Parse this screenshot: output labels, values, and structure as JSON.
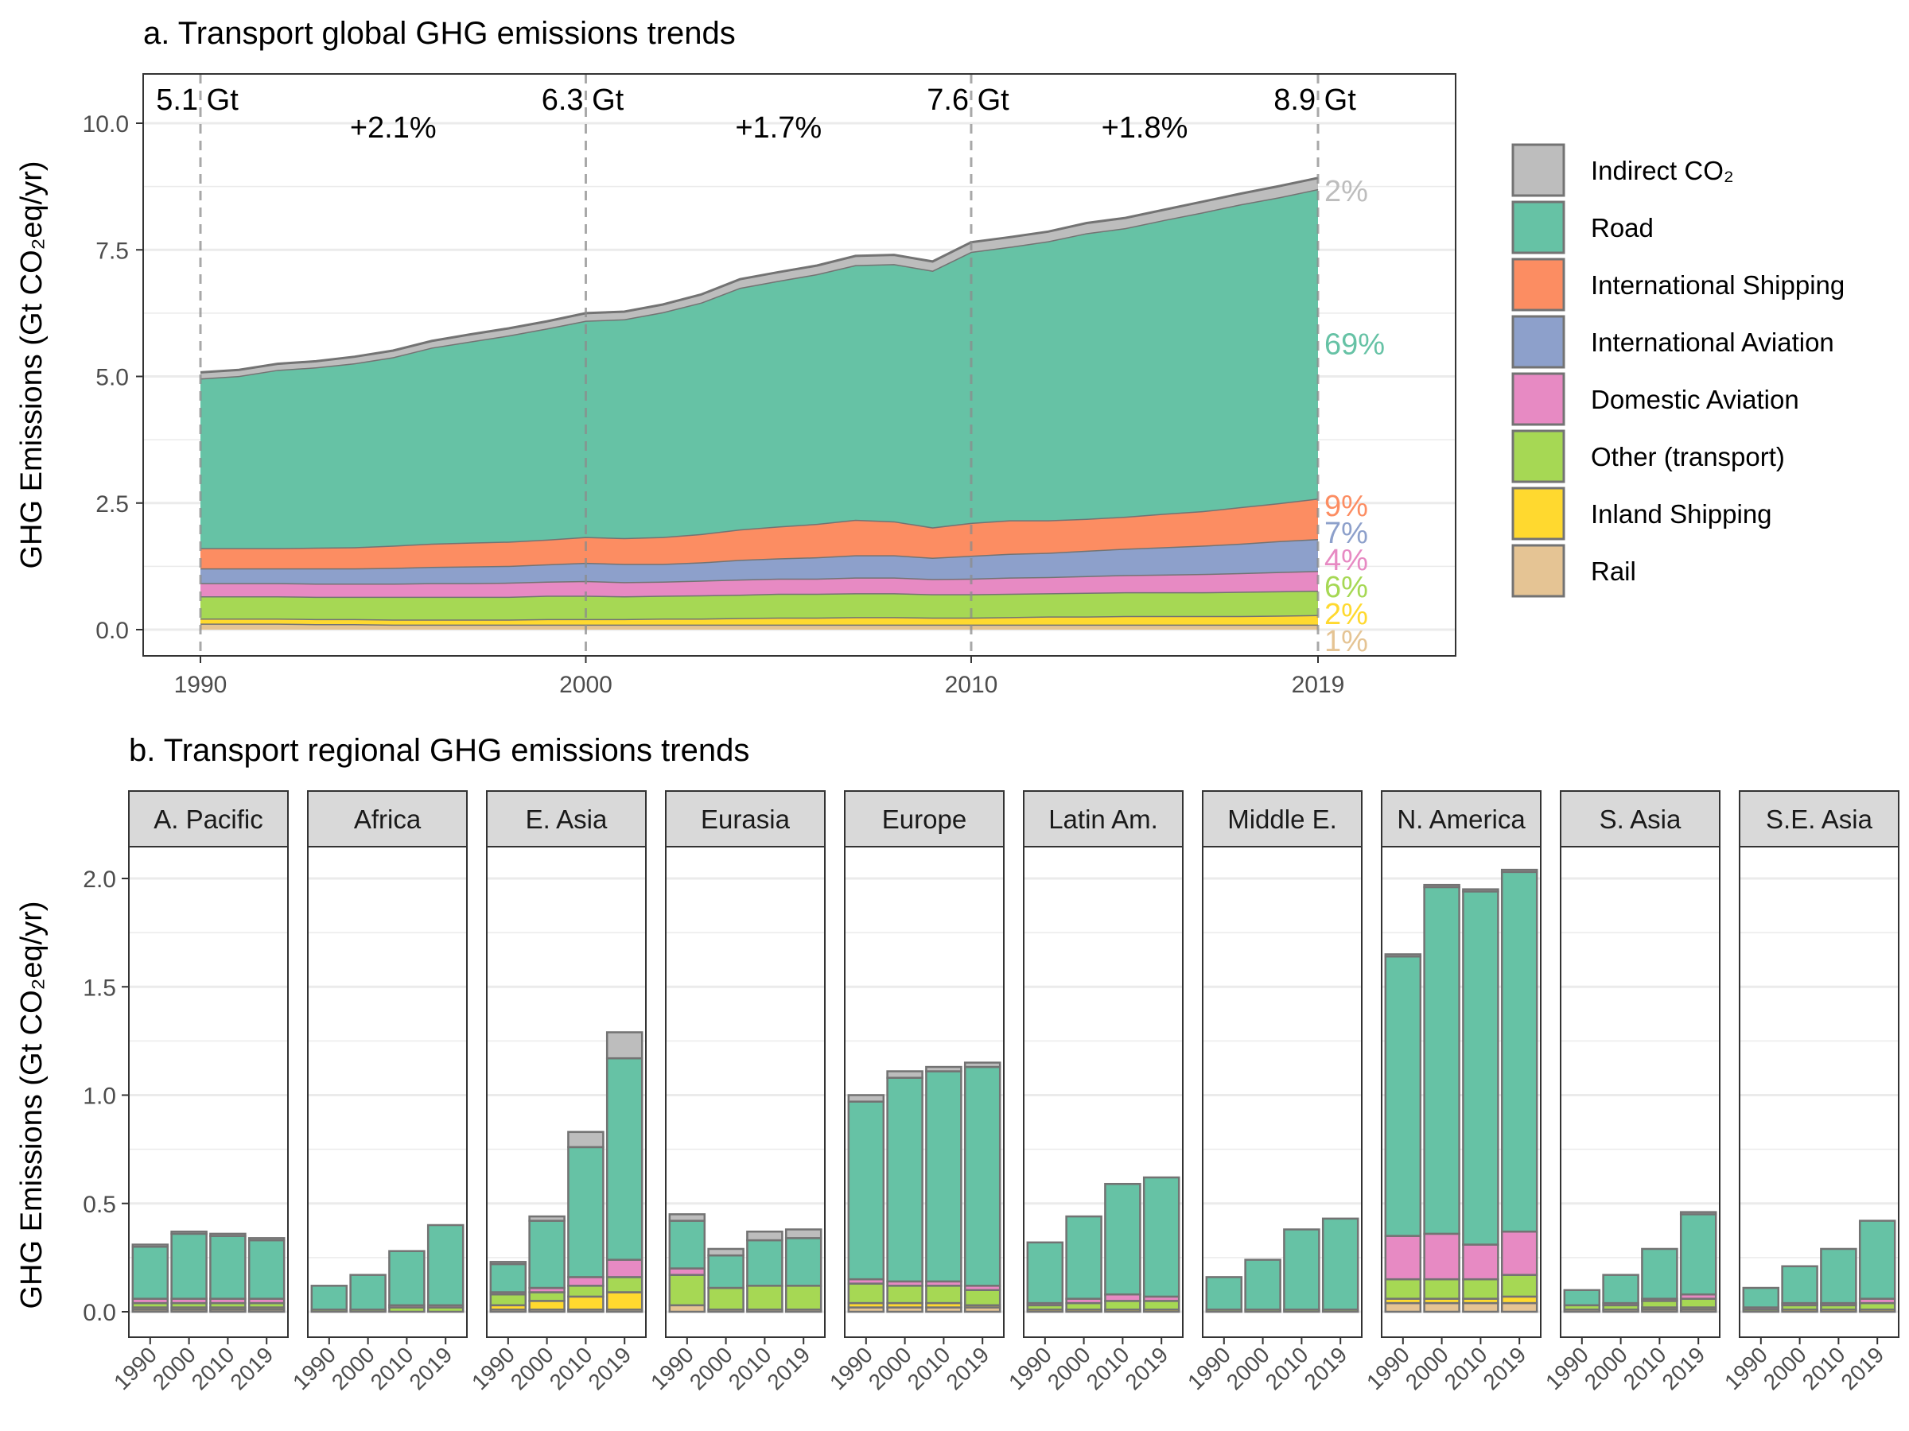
{
  "panel_a": {
    "title": "a. Transport global GHG emissions trends",
    "ylabel": "GHG Emissions (Gt CO₂eq/yr)",
    "yticks": [
      "0.0",
      "2.5",
      "5.0",
      "7.5",
      "10.0"
    ],
    "xticks": [
      "1990",
      "2000",
      "2010",
      "2019"
    ],
    "totals": [
      {
        "year": 1990,
        "label": "5.1 Gt"
      },
      {
        "year": 2000,
        "label": "6.3 Gt"
      },
      {
        "year": 2010,
        "label": "7.6 Gt"
      },
      {
        "year": 2019,
        "label": "8.9 Gt"
      }
    ],
    "growth": [
      {
        "year_mid": 1995,
        "label": "+2.1%"
      },
      {
        "year_mid": 2005,
        "label": "+1.7%"
      },
      {
        "year_mid": 2014.5,
        "label": "+1.8%"
      }
    ],
    "shares": [
      {
        "series": "Indirect CO₂",
        "label": "2%"
      },
      {
        "series": "Road",
        "label": "69%"
      },
      {
        "series": "International Shipping",
        "label": "9%"
      },
      {
        "series": "International Aviation",
        "label": "7%"
      },
      {
        "series": "Domestic Aviation",
        "label": "4%"
      },
      {
        "series": "Other (transport)",
        "label": "6%"
      },
      {
        "series": "Inland Shipping",
        "label": "2%"
      },
      {
        "series": "Rail",
        "label": "1%"
      }
    ]
  },
  "panel_b": {
    "title": "b. Transport regional GHG emissions trends",
    "ylabel": "GHG Emissions (Gt CO₂eq/yr)",
    "yticks": [
      "0.0",
      "0.5",
      "1.0",
      "1.5",
      "2.0"
    ],
    "xticks": [
      "1990",
      "2000",
      "2010",
      "2019"
    ]
  },
  "legend": [
    {
      "name": "Indirect CO₂",
      "color": "#bdbdbd"
    },
    {
      "name": "Road",
      "color": "#66c2a5"
    },
    {
      "name": "International Shipping",
      "color": "#fc8d62"
    },
    {
      "name": "International Aviation",
      "color": "#8da0cb"
    },
    {
      "name": "Domestic Aviation",
      "color": "#e78ac3"
    },
    {
      "name": "Other (transport)",
      "color": "#a6d854"
    },
    {
      "name": "Inland Shipping",
      "color": "#ffd92f"
    },
    {
      "name": "Rail",
      "color": "#e5c494"
    }
  ],
  "chart_data": [
    {
      "type": "area",
      "title": "a. Transport global GHG emissions trends",
      "xlabel": "",
      "ylabel": "GHG Emissions (Gt CO₂eq/yr)",
      "xlim": [
        1990,
        2019
      ],
      "ylim": [
        0,
        10
      ],
      "stacked": true,
      "grid": true,
      "legend_position": "right",
      "x": [
        1990,
        1991,
        1992,
        1993,
        1994,
        1995,
        1996,
        1997,
        1998,
        1999,
        2000,
        2001,
        2002,
        2003,
        2004,
        2005,
        2006,
        2007,
        2008,
        2009,
        2010,
        2011,
        2012,
        2013,
        2014,
        2015,
        2016,
        2017,
        2018,
        2019
      ],
      "series": [
        {
          "name": "Rail",
          "values": [
            0.12,
            0.12,
            0.12,
            0.11,
            0.11,
            0.1,
            0.1,
            0.1,
            0.1,
            0.1,
            0.1,
            0.1,
            0.1,
            0.1,
            0.1,
            0.1,
            0.1,
            0.1,
            0.1,
            0.1,
            0.1,
            0.1,
            0.1,
            0.1,
            0.1,
            0.1,
            0.1,
            0.1,
            0.1,
            0.1
          ]
        },
        {
          "name": "Inland Shipping",
          "values": [
            0.1,
            0.1,
            0.1,
            0.1,
            0.1,
            0.1,
            0.1,
            0.1,
            0.1,
            0.11,
            0.11,
            0.11,
            0.12,
            0.12,
            0.13,
            0.14,
            0.14,
            0.15,
            0.15,
            0.14,
            0.14,
            0.15,
            0.16,
            0.16,
            0.17,
            0.17,
            0.17,
            0.17,
            0.18,
            0.19
          ]
        },
        {
          "name": "Other (transport)",
          "values": [
            0.44,
            0.44,
            0.44,
            0.44,
            0.44,
            0.45,
            0.45,
            0.45,
            0.45,
            0.46,
            0.46,
            0.45,
            0.45,
            0.46,
            0.46,
            0.47,
            0.47,
            0.47,
            0.47,
            0.46,
            0.46,
            0.46,
            0.46,
            0.47,
            0.47,
            0.47,
            0.47,
            0.48,
            0.48,
            0.48
          ]
        },
        {
          "name": "Domestic Aviation",
          "values": [
            0.26,
            0.26,
            0.26,
            0.26,
            0.26,
            0.26,
            0.27,
            0.27,
            0.28,
            0.28,
            0.29,
            0.28,
            0.28,
            0.29,
            0.3,
            0.3,
            0.3,
            0.31,
            0.31,
            0.3,
            0.31,
            0.32,
            0.32,
            0.33,
            0.34,
            0.35,
            0.36,
            0.37,
            0.38,
            0.39
          ]
        },
        {
          "name": "International Aviation",
          "values": [
            0.29,
            0.29,
            0.29,
            0.3,
            0.3,
            0.31,
            0.32,
            0.33,
            0.33,
            0.34,
            0.36,
            0.36,
            0.35,
            0.36,
            0.39,
            0.4,
            0.42,
            0.44,
            0.44,
            0.42,
            0.45,
            0.47,
            0.48,
            0.5,
            0.52,
            0.54,
            0.56,
            0.58,
            0.61,
            0.63
          ]
        },
        {
          "name": "International Shipping",
          "values": [
            0.4,
            0.4,
            0.4,
            0.41,
            0.42,
            0.44,
            0.46,
            0.47,
            0.48,
            0.49,
            0.51,
            0.51,
            0.53,
            0.56,
            0.6,
            0.63,
            0.66,
            0.7,
            0.67,
            0.6,
            0.65,
            0.66,
            0.64,
            0.63,
            0.63,
            0.66,
            0.68,
            0.72,
            0.75,
            0.8
          ]
        },
        {
          "name": "Road",
          "values": [
            3.35,
            3.4,
            3.52,
            3.56,
            3.63,
            3.72,
            3.87,
            3.97,
            4.07,
            4.17,
            4.27,
            4.32,
            4.44,
            4.57,
            4.77,
            4.85,
            4.93,
            5.03,
            5.08,
            5.07,
            5.35,
            5.4,
            5.51,
            5.64,
            5.7,
            5.8,
            5.9,
            5.98,
            6.04,
            6.11
          ]
        },
        {
          "name": "Indirect CO₂",
          "values": [
            0.12,
            0.12,
            0.12,
            0.12,
            0.13,
            0.13,
            0.13,
            0.14,
            0.14,
            0.14,
            0.15,
            0.15,
            0.15,
            0.16,
            0.17,
            0.17,
            0.17,
            0.18,
            0.18,
            0.18,
            0.19,
            0.19,
            0.19,
            0.2,
            0.2,
            0.2,
            0.21,
            0.21,
            0.22,
            0.22
          ]
        }
      ]
    },
    {
      "type": "bar",
      "title": "b. Transport regional GHG emissions trends",
      "xlabel": "",
      "ylabel": "GHG Emissions (Gt CO₂eq/yr)",
      "ylim": [
        0,
        2.2
      ],
      "stacked": true,
      "grid": true,
      "categories": [
        "1990",
        "2000",
        "2010",
        "2019"
      ],
      "series_order": [
        "Rail",
        "Inland Shipping",
        "Other (transport)",
        "Domestic Aviation",
        "International Aviation",
        "International Shipping",
        "Road",
        "Indirect CO₂"
      ],
      "facets": [
        {
          "region": "A. Pacific",
          "stacks": [
            [
              0.01,
              0.01,
              0.02,
              0.02,
              0.0,
              0.0,
              0.24,
              0.01
            ],
            [
              0.01,
              0.01,
              0.02,
              0.02,
              0.0,
              0.0,
              0.3,
              0.01
            ],
            [
              0.01,
              0.01,
              0.02,
              0.02,
              0.0,
              0.0,
              0.29,
              0.01
            ],
            [
              0.01,
              0.01,
              0.02,
              0.02,
              0.0,
              0.0,
              0.27,
              0.01
            ]
          ]
        },
        {
          "region": "Africa",
          "stacks": [
            [
              0.0,
              0.0,
              0.01,
              0.0,
              0.0,
              0.0,
              0.11,
              0.0
            ],
            [
              0.0,
              0.0,
              0.01,
              0.0,
              0.0,
              0.0,
              0.16,
              0.0
            ],
            [
              0.0,
              0.0,
              0.02,
              0.01,
              0.0,
              0.0,
              0.25,
              0.0
            ],
            [
              0.0,
              0.0,
              0.02,
              0.01,
              0.0,
              0.0,
              0.37,
              0.0
            ]
          ]
        },
        {
          "region": "E. Asia",
          "stacks": [
            [
              0.01,
              0.02,
              0.05,
              0.01,
              0.0,
              0.0,
              0.13,
              0.01
            ],
            [
              0.01,
              0.04,
              0.04,
              0.02,
              0.0,
              0.0,
              0.31,
              0.02
            ],
            [
              0.01,
              0.06,
              0.05,
              0.04,
              0.0,
              0.0,
              0.6,
              0.07
            ],
            [
              0.01,
              0.08,
              0.07,
              0.08,
              0.0,
              0.0,
              0.93,
              0.12
            ]
          ]
        },
        {
          "region": "Eurasia",
          "stacks": [
            [
              0.03,
              0.0,
              0.14,
              0.03,
              0.0,
              0.0,
              0.22,
              0.03
            ],
            [
              0.01,
              0.0,
              0.1,
              0.0,
              0.0,
              0.0,
              0.15,
              0.03
            ],
            [
              0.01,
              0.0,
              0.11,
              0.0,
              0.0,
              0.0,
              0.21,
              0.04
            ],
            [
              0.01,
              0.0,
              0.11,
              0.0,
              0.0,
              0.0,
              0.22,
              0.04
            ]
          ]
        },
        {
          "region": "Europe",
          "stacks": [
            [
              0.02,
              0.02,
              0.09,
              0.02,
              0.0,
              0.0,
              0.82,
              0.03
            ],
            [
              0.02,
              0.02,
              0.08,
              0.02,
              0.0,
              0.0,
              0.94,
              0.03
            ],
            [
              0.02,
              0.02,
              0.08,
              0.02,
              0.0,
              0.0,
              0.97,
              0.02
            ],
            [
              0.02,
              0.01,
              0.07,
              0.02,
              0.0,
              0.0,
              1.01,
              0.02
            ]
          ]
        },
        {
          "region": "Latin Am.",
          "stacks": [
            [
              0.0,
              0.01,
              0.02,
              0.01,
              0.0,
              0.0,
              0.28,
              0.0
            ],
            [
              0.0,
              0.01,
              0.03,
              0.02,
              0.0,
              0.0,
              0.38,
              0.0
            ],
            [
              0.0,
              0.01,
              0.04,
              0.03,
              0.0,
              0.0,
              0.51,
              0.0
            ],
            [
              0.0,
              0.01,
              0.04,
              0.02,
              0.0,
              0.0,
              0.55,
              0.0
            ]
          ]
        },
        {
          "region": "Middle E.",
          "stacks": [
            [
              0.0,
              0.0,
              0.01,
              0.0,
              0.0,
              0.0,
              0.15,
              0.0
            ],
            [
              0.0,
              0.0,
              0.01,
              0.0,
              0.0,
              0.0,
              0.23,
              0.0
            ],
            [
              0.0,
              0.0,
              0.01,
              0.0,
              0.0,
              0.0,
              0.37,
              0.0
            ],
            [
              0.0,
              0.0,
              0.01,
              0.0,
              0.0,
              0.0,
              0.42,
              0.0
            ]
          ]
        },
        {
          "region": "N. America",
          "stacks": [
            [
              0.04,
              0.02,
              0.09,
              0.2,
              0.0,
              0.0,
              1.29,
              0.01
            ],
            [
              0.04,
              0.02,
              0.09,
              0.21,
              0.0,
              0.0,
              1.6,
              0.01
            ],
            [
              0.04,
              0.02,
              0.09,
              0.16,
              0.0,
              0.0,
              1.63,
              0.01
            ],
            [
              0.04,
              0.03,
              0.1,
              0.2,
              0.0,
              0.0,
              1.66,
              0.01
            ]
          ]
        },
        {
          "region": "S. Asia",
          "stacks": [
            [
              0.01,
              0.0,
              0.02,
              0.0,
              0.0,
              0.0,
              0.07,
              0.0
            ],
            [
              0.01,
              0.0,
              0.02,
              0.01,
              0.0,
              0.0,
              0.13,
              0.0
            ],
            [
              0.01,
              0.01,
              0.03,
              0.01,
              0.0,
              0.0,
              0.23,
              0.0
            ],
            [
              0.01,
              0.01,
              0.04,
              0.02,
              0.0,
              0.0,
              0.37,
              0.01
            ]
          ]
        },
        {
          "region": "S.E. Asia",
          "stacks": [
            [
              0.0,
              0.0,
              0.01,
              0.01,
              0.0,
              0.0,
              0.09,
              0.0
            ],
            [
              0.0,
              0.01,
              0.02,
              0.01,
              0.0,
              0.0,
              0.17,
              0.0
            ],
            [
              0.0,
              0.01,
              0.02,
              0.01,
              0.0,
              0.0,
              0.25,
              0.0
            ],
            [
              0.0,
              0.01,
              0.03,
              0.02,
              0.0,
              0.0,
              0.36,
              0.0
            ]
          ]
        }
      ]
    }
  ]
}
